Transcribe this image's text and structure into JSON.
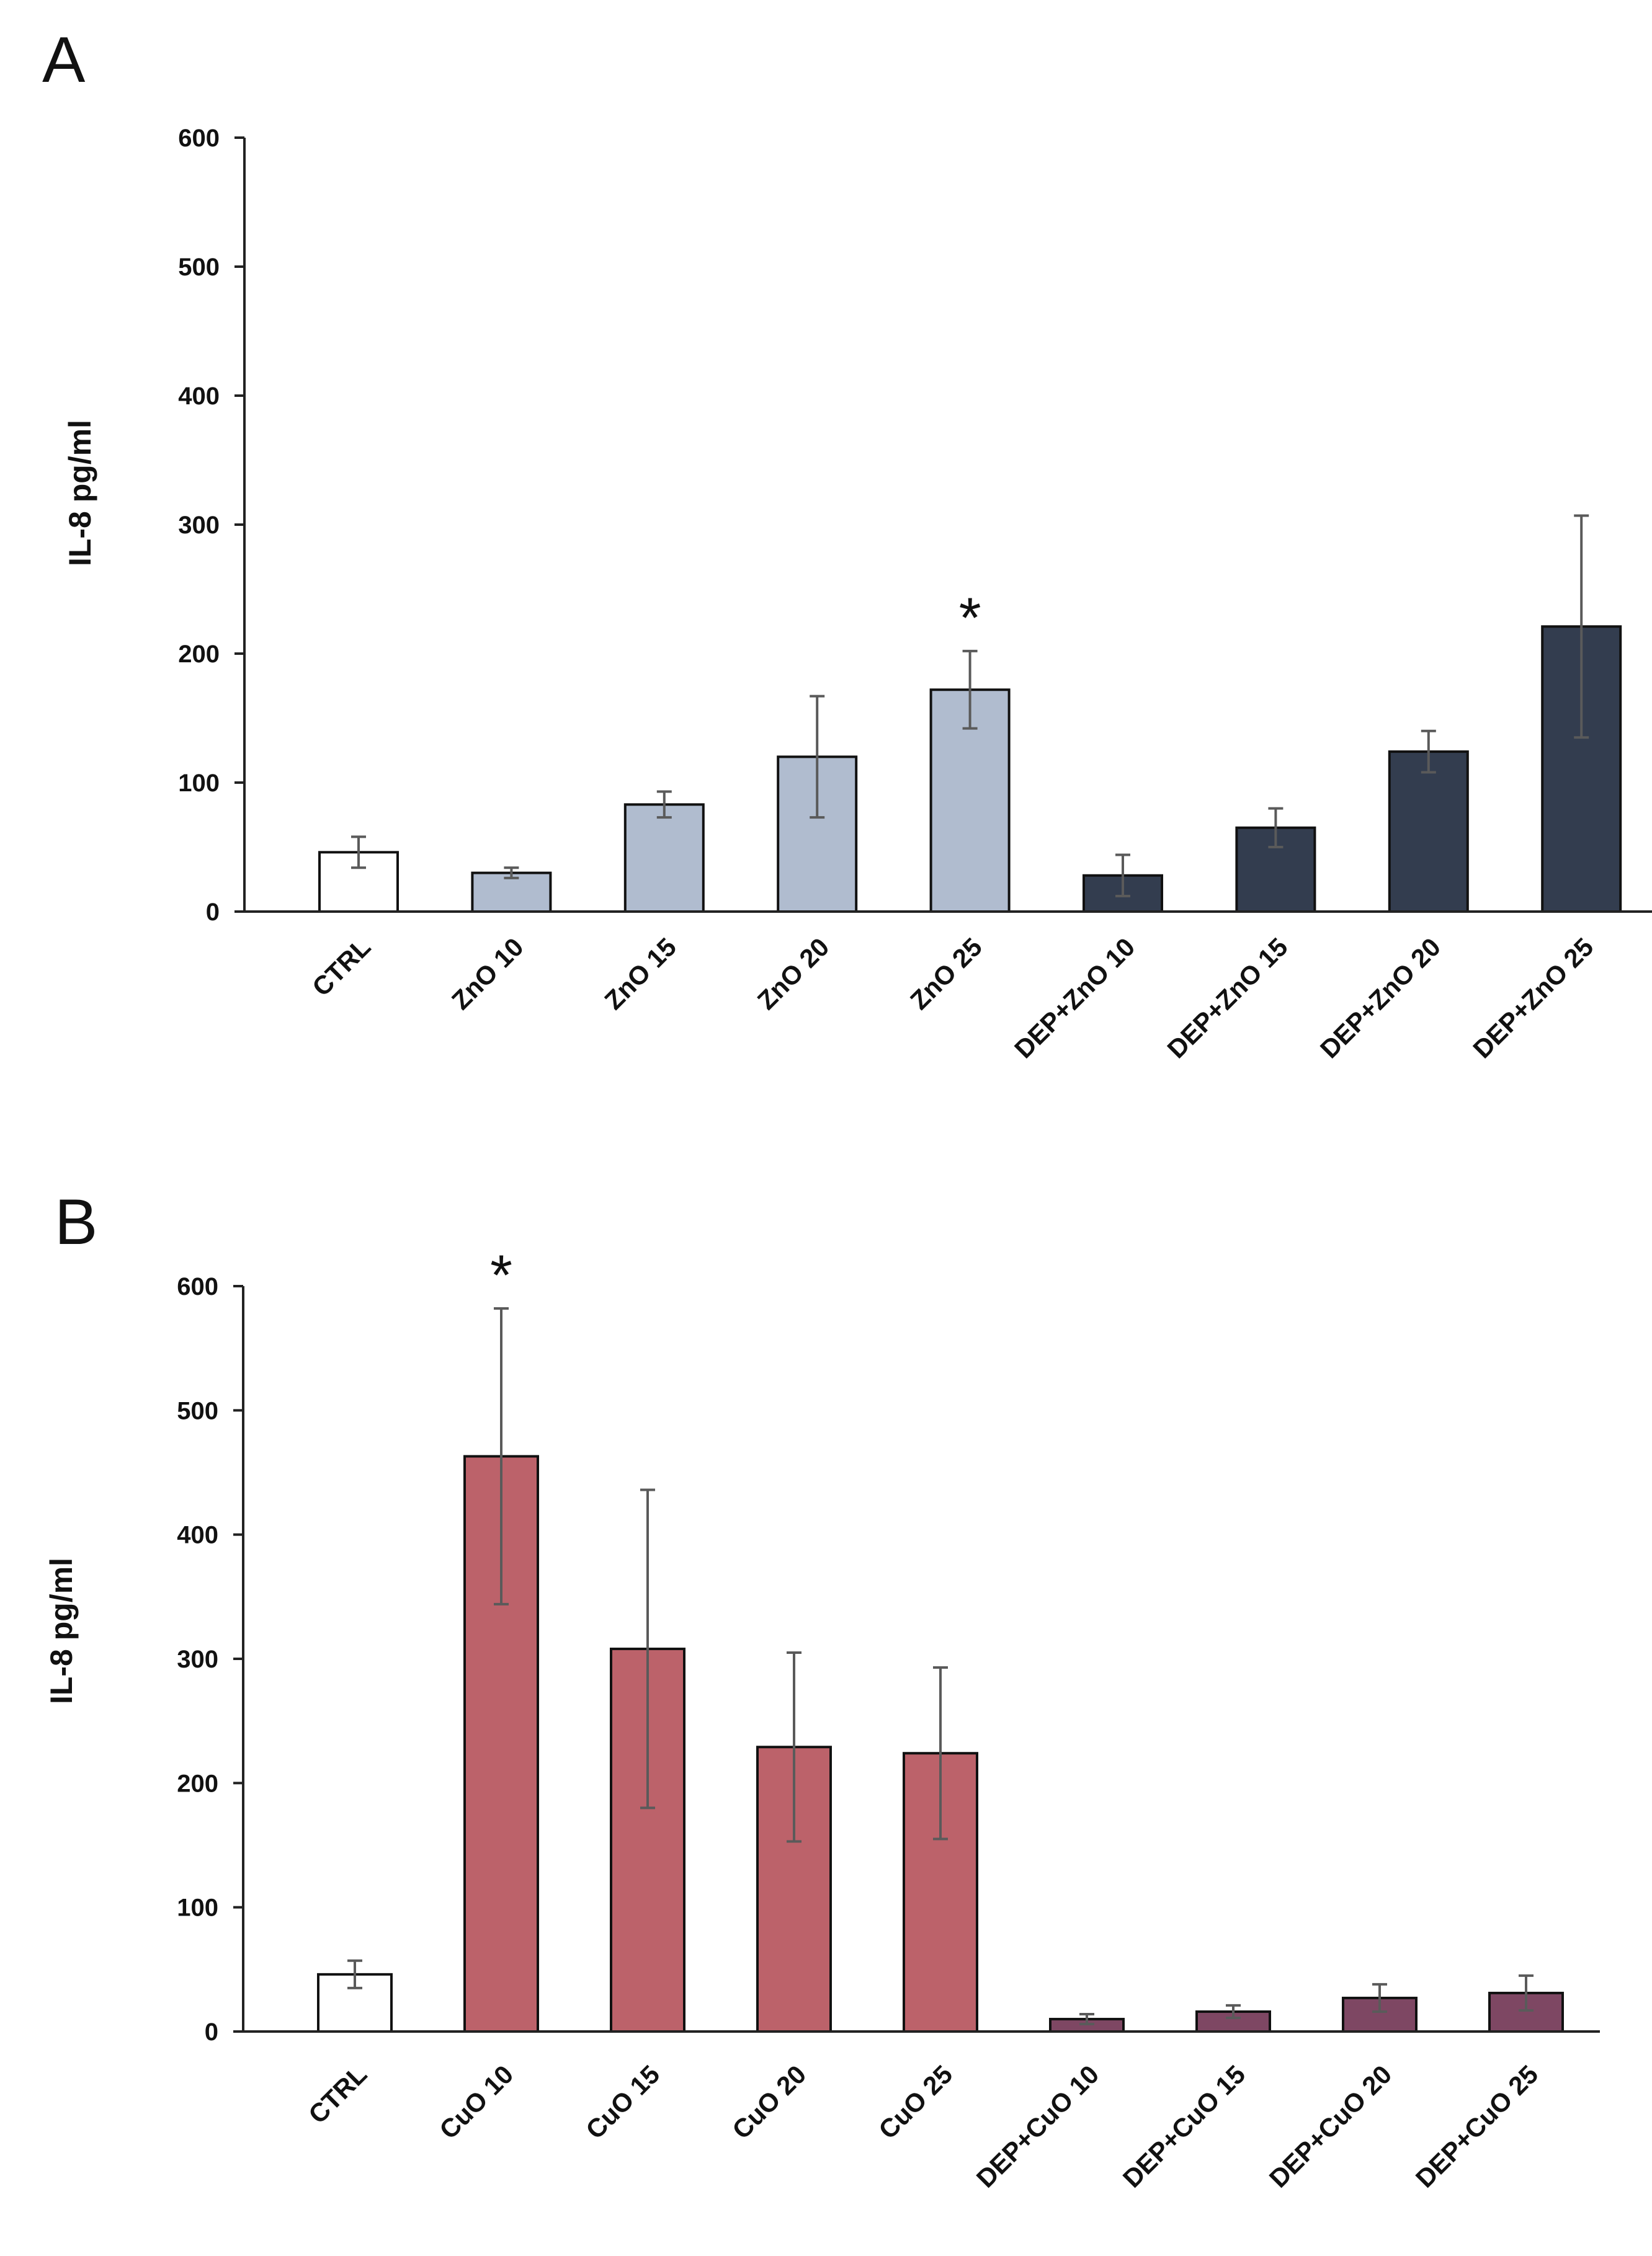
{
  "chart_data": [
    {
      "type": "bar",
      "panel_label": "A",
      "title": "",
      "xlabel": "",
      "ylabel": "IL-8 pg/ml",
      "ylim": [
        0,
        600
      ],
      "yticks": [
        0,
        100,
        200,
        300,
        400,
        500,
        600
      ],
      "grid": false,
      "categories": [
        "CTRL",
        "ZnO 10",
        "ZnO 15",
        "ZnO 20",
        "ZnO 25",
        "DEP+ZnO 10",
        "DEP+ZnO 15",
        "DEP+ZnO 20",
        "DEP+ZnO 25"
      ],
      "values": [
        46,
        30,
        83,
        120,
        172,
        28,
        65,
        124,
        221
      ],
      "errors": [
        12,
        4,
        10,
        47,
        30,
        16,
        15,
        16,
        86
      ],
      "colors": [
        "#ffffff",
        "#b0bccf",
        "#b0bccf",
        "#b0bccf",
        "#b0bccf",
        "#333d4f",
        "#333d4f",
        "#333d4f",
        "#333d4f"
      ],
      "annotations": [
        {
          "category": "ZnO 25",
          "text": "*"
        }
      ]
    },
    {
      "type": "bar",
      "panel_label": "B",
      "title": "",
      "xlabel": "",
      "ylabel": "IL-8 pg/ml",
      "ylim": [
        0,
        600
      ],
      "yticks": [
        0,
        100,
        200,
        300,
        400,
        500,
        600
      ],
      "grid": false,
      "categories": [
        "CTRL",
        "CuO 10",
        "CuO 15",
        "CuO 20",
        "CuO 25",
        "DEP+CuO 10",
        "DEP+CuO 15",
        "DEP+CuO 20",
        "DEP+CuO 25"
      ],
      "values": [
        46,
        463,
        308,
        229,
        224,
        10,
        16,
        27,
        31
      ],
      "errors": [
        11,
        119,
        128,
        76,
        69,
        4,
        5,
        11,
        14
      ],
      "colors": [
        "#ffffff",
        "#bc626a",
        "#bc626a",
        "#bc626a",
        "#bc626a",
        "#7e4763",
        "#7e4763",
        "#7e4763",
        "#7e4763"
      ],
      "annotations": [
        {
          "category": "CuO 10",
          "text": "*"
        }
      ]
    }
  ]
}
